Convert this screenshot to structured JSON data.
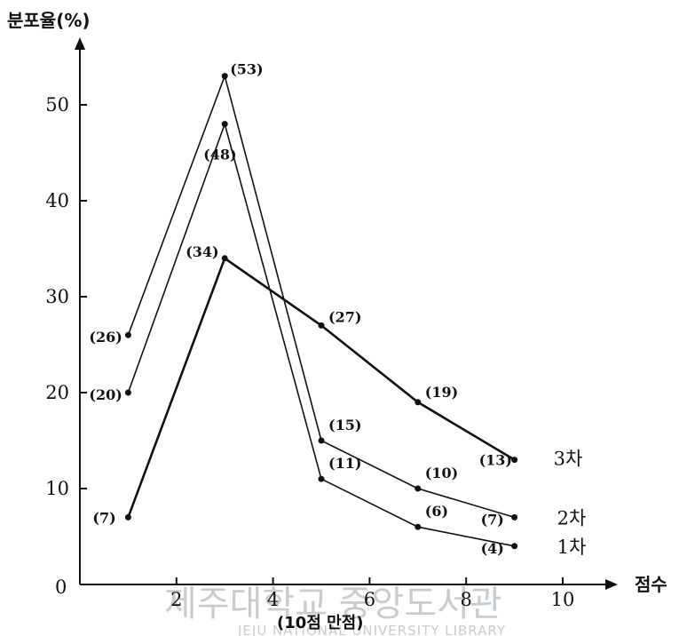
{
  "chart_data": {
    "type": "line",
    "ylabel": "분포율(%)",
    "xlabel": "점수",
    "xlabel_sub": "(10점 만점)",
    "origin_label": "0",
    "x_ticks": [
      2,
      4,
      6,
      8,
      10
    ],
    "y_ticks": [
      10,
      20,
      30,
      40,
      50
    ],
    "xlim": [
      0,
      10.5
    ],
    "ylim": [
      0,
      57
    ],
    "grid": false,
    "legend": "labels at line ends (right)",
    "series": [
      {
        "name": "3차",
        "stroke_width": 2.6,
        "x": [
          1,
          3,
          5,
          7,
          9
        ],
        "values": [
          7,
          34,
          27,
          19,
          13
        ],
        "labels": [
          "(7)",
          "(34)",
          "(27)",
          "(19)",
          "(13)"
        ]
      },
      {
        "name": "2차",
        "stroke_width": 1.6,
        "x": [
          1,
          3,
          5,
          7,
          9
        ],
        "values": [
          26,
          53,
          15,
          10,
          7
        ],
        "labels": [
          "(26)",
          "(53)",
          "(15)",
          "(10)",
          "(7)"
        ]
      },
      {
        "name": "1차",
        "stroke_width": 1.6,
        "x": [
          1,
          3,
          5,
          7,
          9
        ],
        "values": [
          20,
          48,
          11,
          6,
          4
        ],
        "labels": [
          "(20)",
          "(48)",
          "(11)",
          "(6)",
          "(4)"
        ]
      }
    ]
  },
  "watermark": {
    "text": "제주대학교 중앙도서관",
    "sub": "JEJU NATIONAL UNIVERSITY LIBRARY"
  }
}
